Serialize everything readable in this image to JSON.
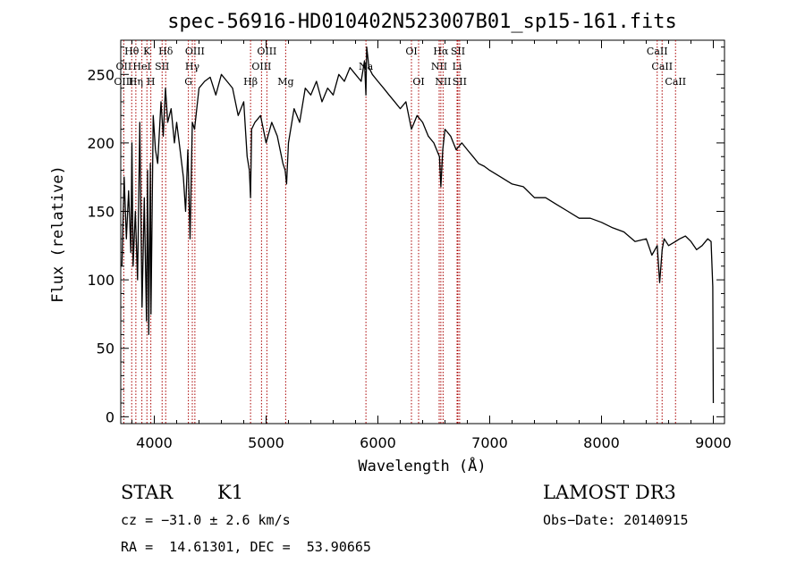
{
  "chart_data": {
    "type": "line",
    "title": "spec-56916-HD010402N523007B01_sp15-161.fits",
    "xlabel": "Wavelength (Å)",
    "ylabel": "Flux (relative)",
    "xlim": [
      3700,
      9100
    ],
    "ylim": [
      -5,
      275
    ],
    "xticks": [
      4000,
      5000,
      6000,
      7000,
      8000,
      9000
    ],
    "yticks": [
      0,
      50,
      100,
      150,
      200,
      250
    ],
    "colors": {
      "spectrum": "#000000",
      "lines": "#aa0000",
      "axes": "#000000"
    },
    "series": [
      {
        "name": "spectrum",
        "x": [
          3710,
          3730,
          3750,
          3770,
          3790,
          3800,
          3810,
          3830,
          3850,
          3870,
          3890,
          3910,
          3930,
          3940,
          3950,
          3965,
          3970,
          3990,
          4010,
          4030,
          4060,
          4080,
          4100,
          4120,
          4150,
          4180,
          4200,
          4230,
          4260,
          4280,
          4300,
          4320,
          4340,
          4360,
          4380,
          4400,
          4450,
          4500,
          4550,
          4600,
          4650,
          4700,
          4750,
          4800,
          4830,
          4850,
          4861,
          4870,
          4900,
          4950,
          5000,
          5050,
          5100,
          5150,
          5170,
          5183,
          5200,
          5250,
          5300,
          5350,
          5400,
          5450,
          5500,
          5550,
          5600,
          5650,
          5700,
          5750,
          5800,
          5850,
          5880,
          5893,
          5900,
          5920,
          5950,
          6000,
          6050,
          6100,
          6150,
          6200,
          6250,
          6300,
          6350,
          6400,
          6450,
          6500,
          6550,
          6563,
          6580,
          6600,
          6650,
          6700,
          6750,
          6800,
          6850,
          6900,
          6950,
          7000,
          7100,
          7200,
          7300,
          7400,
          7500,
          7600,
          7700,
          7800,
          7900,
          8000,
          8100,
          8200,
          8300,
          8400,
          8450,
          8498,
          8520,
          8542,
          8560,
          8600,
          8662,
          8700,
          8750,
          8800,
          8850,
          8900,
          8950,
          8980,
          8995,
          9000
        ],
        "values": [
          110,
          175,
          130,
          165,
          120,
          200,
          110,
          150,
          100,
          215,
          80,
          160,
          70,
          180,
          60,
          185,
          75,
          220,
          195,
          185,
          230,
          205,
          240,
          215,
          225,
          200,
          215,
          195,
          175,
          150,
          195,
          130,
          215,
          210,
          225,
          240,
          245,
          248,
          235,
          250,
          245,
          240,
          220,
          230,
          190,
          180,
          160,
          210,
          215,
          220,
          200,
          215,
          205,
          185,
          180,
          170,
          200,
          225,
          215,
          240,
          235,
          245,
          230,
          240,
          235,
          250,
          245,
          255,
          250,
          245,
          260,
          235,
          270,
          255,
          250,
          245,
          240,
          235,
          230,
          225,
          230,
          210,
          220,
          215,
          205,
          200,
          190,
          168,
          195,
          210,
          205,
          195,
          200,
          195,
          190,
          185,
          183,
          180,
          175,
          170,
          168,
          160,
          160,
          155,
          150,
          145,
          145,
          142,
          138,
          135,
          128,
          130,
          118,
          125,
          98,
          122,
          130,
          125,
          128,
          130,
          132,
          128,
          122,
          125,
          130,
          128,
          95,
          10
        ]
      }
    ],
    "spectral_lines": [
      {
        "label": "Hθ",
        "wavelength": 3798,
        "row": 0
      },
      {
        "label": "OII",
        "wavelength": 3727,
        "row": 1
      },
      {
        "label": "OIII",
        "wavelength": 3727,
        "row": 2
      },
      {
        "label": "K",
        "wavelength": 3934,
        "row": 0
      },
      {
        "label": "HeI",
        "wavelength": 3889,
        "row": 1
      },
      {
        "label": "Hη",
        "wavelength": 3835,
        "row": 2
      },
      {
        "label": "Hδ",
        "wavelength": 4102,
        "row": 0
      },
      {
        "label": "SII",
        "wavelength": 4070,
        "row": 1
      },
      {
        "label": "H",
        "wavelength": 3969,
        "row": 2
      },
      {
        "label": "OIII",
        "wavelength": 4363,
        "row": 0
      },
      {
        "label": "Hγ",
        "wavelength": 4340,
        "row": 1
      },
      {
        "label": "G",
        "wavelength": 4305,
        "row": 2
      },
      {
        "label": "OIII",
        "wavelength": 5007,
        "row": 0
      },
      {
        "label": "OIII",
        "wavelength": 4959,
        "row": 1
      },
      {
        "label": "Hβ",
        "wavelength": 4861,
        "row": 2
      },
      {
        "label": "Mg",
        "wavelength": 5175,
        "row": 2
      },
      {
        "label": "Na",
        "wavelength": 5893,
        "row": 1
      },
      {
        "label": "OI",
        "wavelength": 6300,
        "row": 0
      },
      {
        "label": "OI",
        "wavelength": 6364,
        "row": 2
      },
      {
        "label": "Hα",
        "wavelength": 6563,
        "row": 0
      },
      {
        "label": "SII",
        "wavelength": 6716,
        "row": 0
      },
      {
        "label": "NII",
        "wavelength": 6548,
        "row": 1
      },
      {
        "label": "Li",
        "wavelength": 6708,
        "row": 1
      },
      {
        "label": "NII",
        "wavelength": 6583,
        "row": 2
      },
      {
        "label": "SII",
        "wavelength": 6731,
        "row": 2
      },
      {
        "label": "CaII",
        "wavelength": 8498,
        "row": 0
      },
      {
        "label": "CaII",
        "wavelength": 8542,
        "row": 1
      },
      {
        "label": "CaII",
        "wavelength": 8662,
        "row": 2
      }
    ]
  },
  "footer": {
    "object_type": "STAR",
    "subclass": "K1",
    "survey": "LAMOST DR3",
    "cz": "cz = −31.0 ± 2.6 km/s",
    "obs_date": "Obs−Date: 20140915",
    "coords": "RA =  14.61301, DEC =  53.90665"
  }
}
